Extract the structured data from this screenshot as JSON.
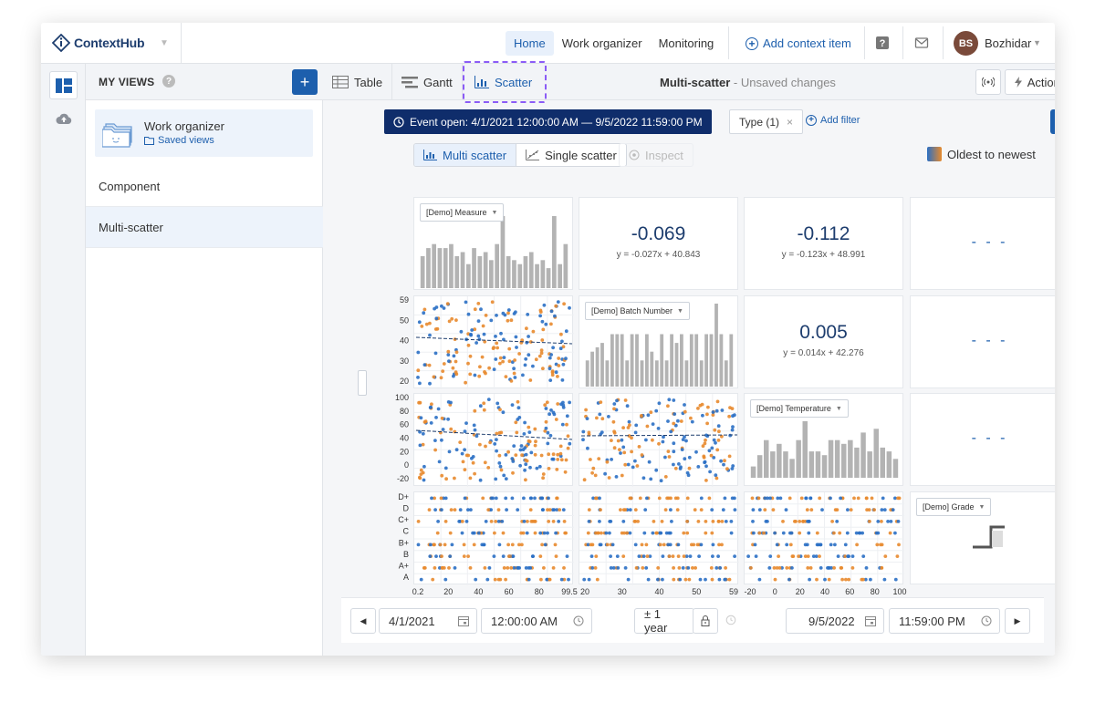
{
  "app": {
    "name": "ContextHub"
  },
  "nav": {
    "items": [
      "Home",
      "Work organizer",
      "Monitoring"
    ],
    "active": "Home",
    "add_context": "Add context item"
  },
  "user": {
    "initials": "BS",
    "name": "Bozhidar"
  },
  "sidebar": {
    "title": "MY VIEWS",
    "card": {
      "title": "Work organizer",
      "subtitle": "Saved views"
    },
    "items": [
      "Component",
      "Multi-scatter"
    ],
    "active": "Multi-scatter"
  },
  "toolbar": {
    "tabs": [
      "Table",
      "Gantt",
      "Scatter"
    ],
    "active_tab": "Scatter",
    "doc_title": "Multi-scatter",
    "doc_status": " - Unsaved changes",
    "actions_label": "Actions"
  },
  "filters": {
    "event_open": "Event open: 4/1/2021 12:00:00 AM — 9/5/2022 11:59:00 PM",
    "type_chip": "Type (1)",
    "add_filter": "Add filter"
  },
  "modes": {
    "multi": "Multi scatter",
    "single": "Single scatter",
    "inspect": "Inspect",
    "order": "Oldest to newest"
  },
  "matrix": {
    "variables": [
      "[Demo] Measure",
      "[Demo] Batch Number",
      "[Demo] Temperature",
      "[Demo] Grade"
    ],
    "correlations": [
      {
        "value": "-0.069",
        "equation": "y = -0.027x + 40.843"
      },
      {
        "value": "-0.112",
        "equation": "y = -0.123x + 48.991"
      },
      {
        "value": "0.005",
        "equation": "y = 0.014x + 42.276"
      }
    ],
    "empty": "- - -",
    "y_ticks_batch": [
      "59",
      "50",
      "40",
      "30",
      "20"
    ],
    "y_ticks_temp": [
      "100",
      "80",
      "60",
      "40",
      "20",
      "0",
      "-20"
    ],
    "y_ticks_grade": [
      "D+",
      "D",
      "C+",
      "C",
      "B+",
      "B",
      "A+",
      "A"
    ],
    "x_ticks_measure": [
      "0.2",
      "20",
      "40",
      "60",
      "80",
      "99.5"
    ],
    "x_ticks_batch": [
      "20",
      "30",
      "40",
      "50",
      "59"
    ],
    "x_ticks_temp": [
      "-20",
      "0",
      "20",
      "40",
      "60",
      "80",
      "100"
    ]
  },
  "chart_data": [
    {
      "type": "bar",
      "title": "[Demo] Measure",
      "values": [
        8,
        10,
        11,
        10,
        10,
        11,
        8,
        9,
        6,
        10,
        8,
        9,
        7,
        11,
        18,
        8,
        7,
        6,
        8,
        9,
        6,
        7,
        5,
        18,
        6,
        11
      ]
    },
    {
      "type": "bar",
      "title": "[Demo] Batch Number",
      "values": [
        6,
        8,
        9,
        10,
        6,
        12,
        12,
        12,
        6,
        12,
        12,
        6,
        12,
        8,
        6,
        12,
        6,
        12,
        10,
        12,
        6,
        12,
        12,
        6,
        12,
        12,
        19,
        12,
        6,
        12
      ]
    },
    {
      "type": "bar",
      "title": "[Demo] Temperature",
      "values": [
        3,
        6,
        10,
        7,
        9,
        7,
        5,
        10,
        15,
        7,
        7,
        6,
        10,
        10,
        9,
        10,
        8,
        12,
        7,
        13,
        8,
        7,
        5
      ]
    },
    {
      "type": "step",
      "title": "[Demo] Grade"
    }
  ],
  "bottom": {
    "start_date": "4/1/2021",
    "start_time": "12:00:00 AM",
    "range": "± 1 year",
    "end_date": "9/5/2022",
    "end_time": "11:59:00 PM"
  },
  "colors": {
    "accent": "#1d5fad",
    "navy": "#0f2d6b",
    "orange": "#e88a2d",
    "blue": "#2a6fc4",
    "bar": "#b3b3b3"
  }
}
